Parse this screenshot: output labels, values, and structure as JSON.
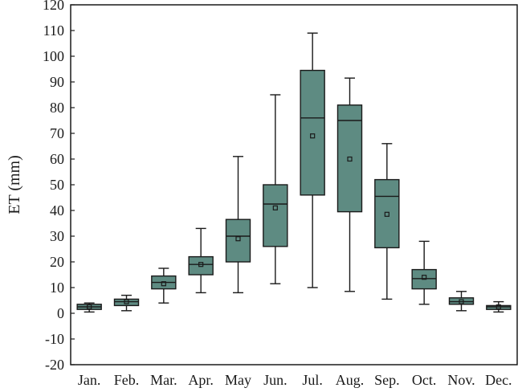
{
  "chart_data": {
    "type": "box",
    "ylabel": "ET (mm)",
    "xlabel": "",
    "ylim": [
      -20,
      120
    ],
    "yticks": [
      -20,
      -10,
      0,
      10,
      20,
      30,
      40,
      50,
      60,
      70,
      80,
      90,
      100,
      110,
      120
    ],
    "grid": false,
    "legend": "none",
    "box_color": "#5e8b82",
    "edge_color": "#1a1a1a",
    "categories": [
      "Jan.",
      "Feb.",
      "Mar.",
      "Apr.",
      "May",
      "Jun.",
      "Jul.",
      "Aug.",
      "Sep.",
      "Oct.",
      "Nov.",
      "Dec."
    ],
    "boxes": [
      {
        "min": 0.5,
        "q1": 1.5,
        "median": 2.5,
        "q3": 3.5,
        "max": 4.0,
        "mean": 2.5
      },
      {
        "min": 1.0,
        "q1": 3.0,
        "median": 4.5,
        "q3": 5.5,
        "max": 7.0,
        "mean": 4.5
      },
      {
        "min": 4.0,
        "q1": 9.5,
        "median": 12.0,
        "q3": 14.5,
        "max": 17.5,
        "mean": 11.5
      },
      {
        "min": 8.0,
        "q1": 15.0,
        "median": 19.0,
        "q3": 22.0,
        "max": 33.0,
        "mean": 19.0
      },
      {
        "min": 8.0,
        "q1": 20.0,
        "median": 30.0,
        "q3": 36.5,
        "max": 61.0,
        "mean": 29.0
      },
      {
        "min": 11.5,
        "q1": 26.0,
        "median": 42.5,
        "q3": 50.0,
        "max": 85.0,
        "mean": 41.0
      },
      {
        "min": 10.0,
        "q1": 46.0,
        "median": 76.0,
        "q3": 94.5,
        "max": 109.0,
        "mean": 69.0
      },
      {
        "min": 8.5,
        "q1": 39.5,
        "median": 75.0,
        "q3": 81.0,
        "max": 91.5,
        "mean": 60.0
      },
      {
        "min": 5.5,
        "q1": 25.5,
        "median": 45.5,
        "q3": 52.0,
        "max": 66.0,
        "mean": 38.5
      },
      {
        "min": 3.5,
        "q1": 9.5,
        "median": 13.5,
        "q3": 17.0,
        "max": 28.0,
        "mean": 14.0
      },
      {
        "min": 1.0,
        "q1": 3.5,
        "median": 4.5,
        "q3": 6.0,
        "max": 8.5,
        "mean": 4.5
      },
      {
        "min": 0.5,
        "q1": 1.5,
        "median": 2.5,
        "q3": 3.0,
        "max": 4.5,
        "mean": 2.5
      }
    ]
  }
}
